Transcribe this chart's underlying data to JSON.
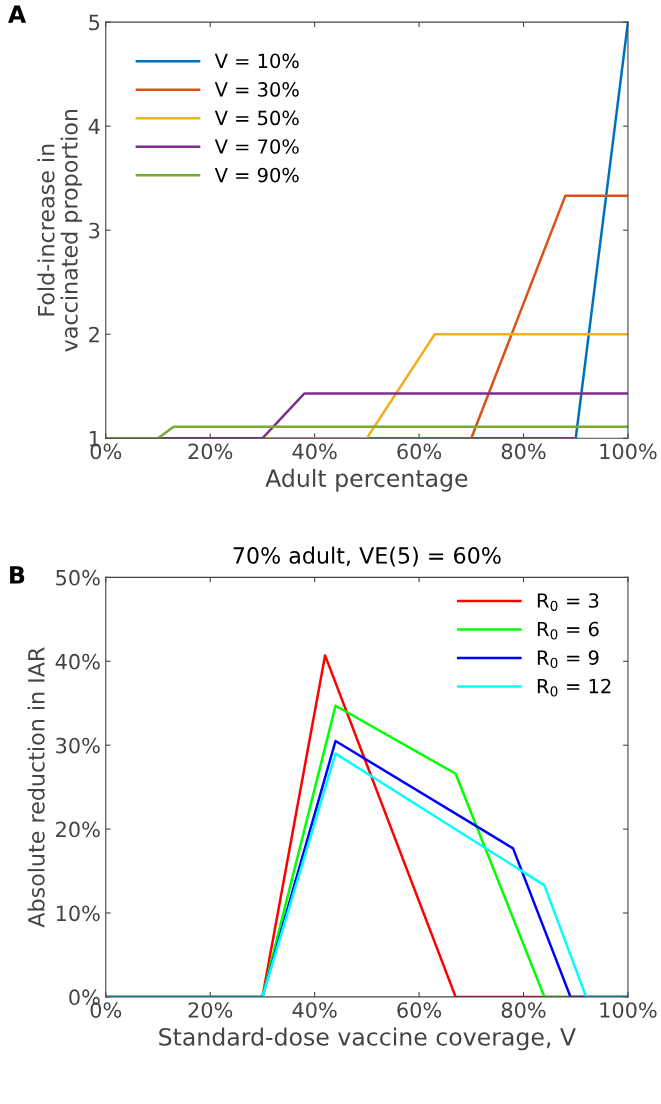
{
  "chart_data": [
    {
      "type": "line",
      "xlabel": "Adult percentage",
      "ylabel": "Fold-increase in\nvaccinated proportion",
      "annotations": [
        "A"
      ],
      "legend": "top left",
      "grid": false,
      "xlim": [
        0,
        100
      ],
      "ylim": [
        1,
        5
      ],
      "xticks": [
        {
          "value": 0,
          "label": "0%"
        },
        {
          "value": 20,
          "label": "20%"
        },
        {
          "value": 40,
          "label": "40%"
        },
        {
          "value": 60,
          "label": "60%"
        },
        {
          "value": 80,
          "label": "80%"
        },
        {
          "value": 100,
          "label": "100%"
        }
      ],
      "yticks": [
        1,
        2,
        3,
        4,
        5
      ],
      "series": [
        {
          "name": "V = 10%",
          "color": "#0072bd",
          "x": [
            0,
            90,
            100
          ],
          "values": [
            1,
            1,
            5
          ]
        },
        {
          "name": "V = 30%",
          "color": "#d95319",
          "x": [
            0,
            70,
            88,
            100
          ],
          "values": [
            1,
            1,
            3.33,
            3.33
          ]
        },
        {
          "name": "V = 50%",
          "color": "#edb120",
          "x": [
            0,
            50,
            63,
            100
          ],
          "values": [
            1,
            1,
            2,
            2
          ]
        },
        {
          "name": "V = 70%",
          "color": "#7e2f8e",
          "x": [
            0,
            30,
            38,
            100
          ],
          "values": [
            1,
            1,
            1.43,
            1.43
          ]
        },
        {
          "name": "V = 90%",
          "color": "#77ac30",
          "x": [
            0,
            10,
            13,
            100
          ],
          "values": [
            1,
            1,
            1.11,
            1.11
          ]
        }
      ]
    },
    {
      "type": "line",
      "title": "70% adult, VE(5) = 60%",
      "xlabel": "Standard-dose vaccine coverage, V",
      "ylabel": "Absolute reduction in IAR",
      "annotations": [
        "B"
      ],
      "legend": "top right",
      "grid": false,
      "xlim": [
        0,
        100
      ],
      "ylim": [
        0,
        50
      ],
      "xticks": [
        {
          "value": 0,
          "label": "0%"
        },
        {
          "value": 20,
          "label": "20%"
        },
        {
          "value": 40,
          "label": "40%"
        },
        {
          "value": 60,
          "label": "60%"
        },
        {
          "value": 80,
          "label": "80%"
        },
        {
          "value": 100,
          "label": "100%"
        }
      ],
      "yticks": [
        {
          "value": 0,
          "label": "0%"
        },
        {
          "value": 10,
          "label": "10%"
        },
        {
          "value": 20,
          "label": "20%"
        },
        {
          "value": 30,
          "label": "30%"
        },
        {
          "value": 40,
          "label": "40%"
        },
        {
          "value": 50,
          "label": "50%"
        }
      ],
      "series": [
        {
          "name": "R$_{0}$ = 3",
          "color": "#ff0000",
          "x": [
            0,
            30,
            42,
            67,
            100
          ],
          "values": [
            0,
            0,
            40.7,
            0,
            0
          ]
        },
        {
          "name": "R$_{0}$ = 6",
          "color": "#00ff00",
          "x": [
            0,
            30,
            44,
            67,
            84,
            100
          ],
          "values": [
            0,
            0,
            34.7,
            26.6,
            0,
            0
          ]
        },
        {
          "name": "R$_{0}$ = 9",
          "color": "#0000ff",
          "x": [
            0,
            30,
            44,
            78,
            89,
            100
          ],
          "values": [
            0,
            0,
            30.5,
            17.7,
            0,
            0
          ]
        },
        {
          "name": "R$_{0}$ = 12",
          "color": "#00ffff",
          "x": [
            0,
            30,
            44,
            84,
            92,
            100
          ],
          "values": [
            0,
            0,
            29,
            13.3,
            0,
            0
          ]
        }
      ]
    }
  ]
}
